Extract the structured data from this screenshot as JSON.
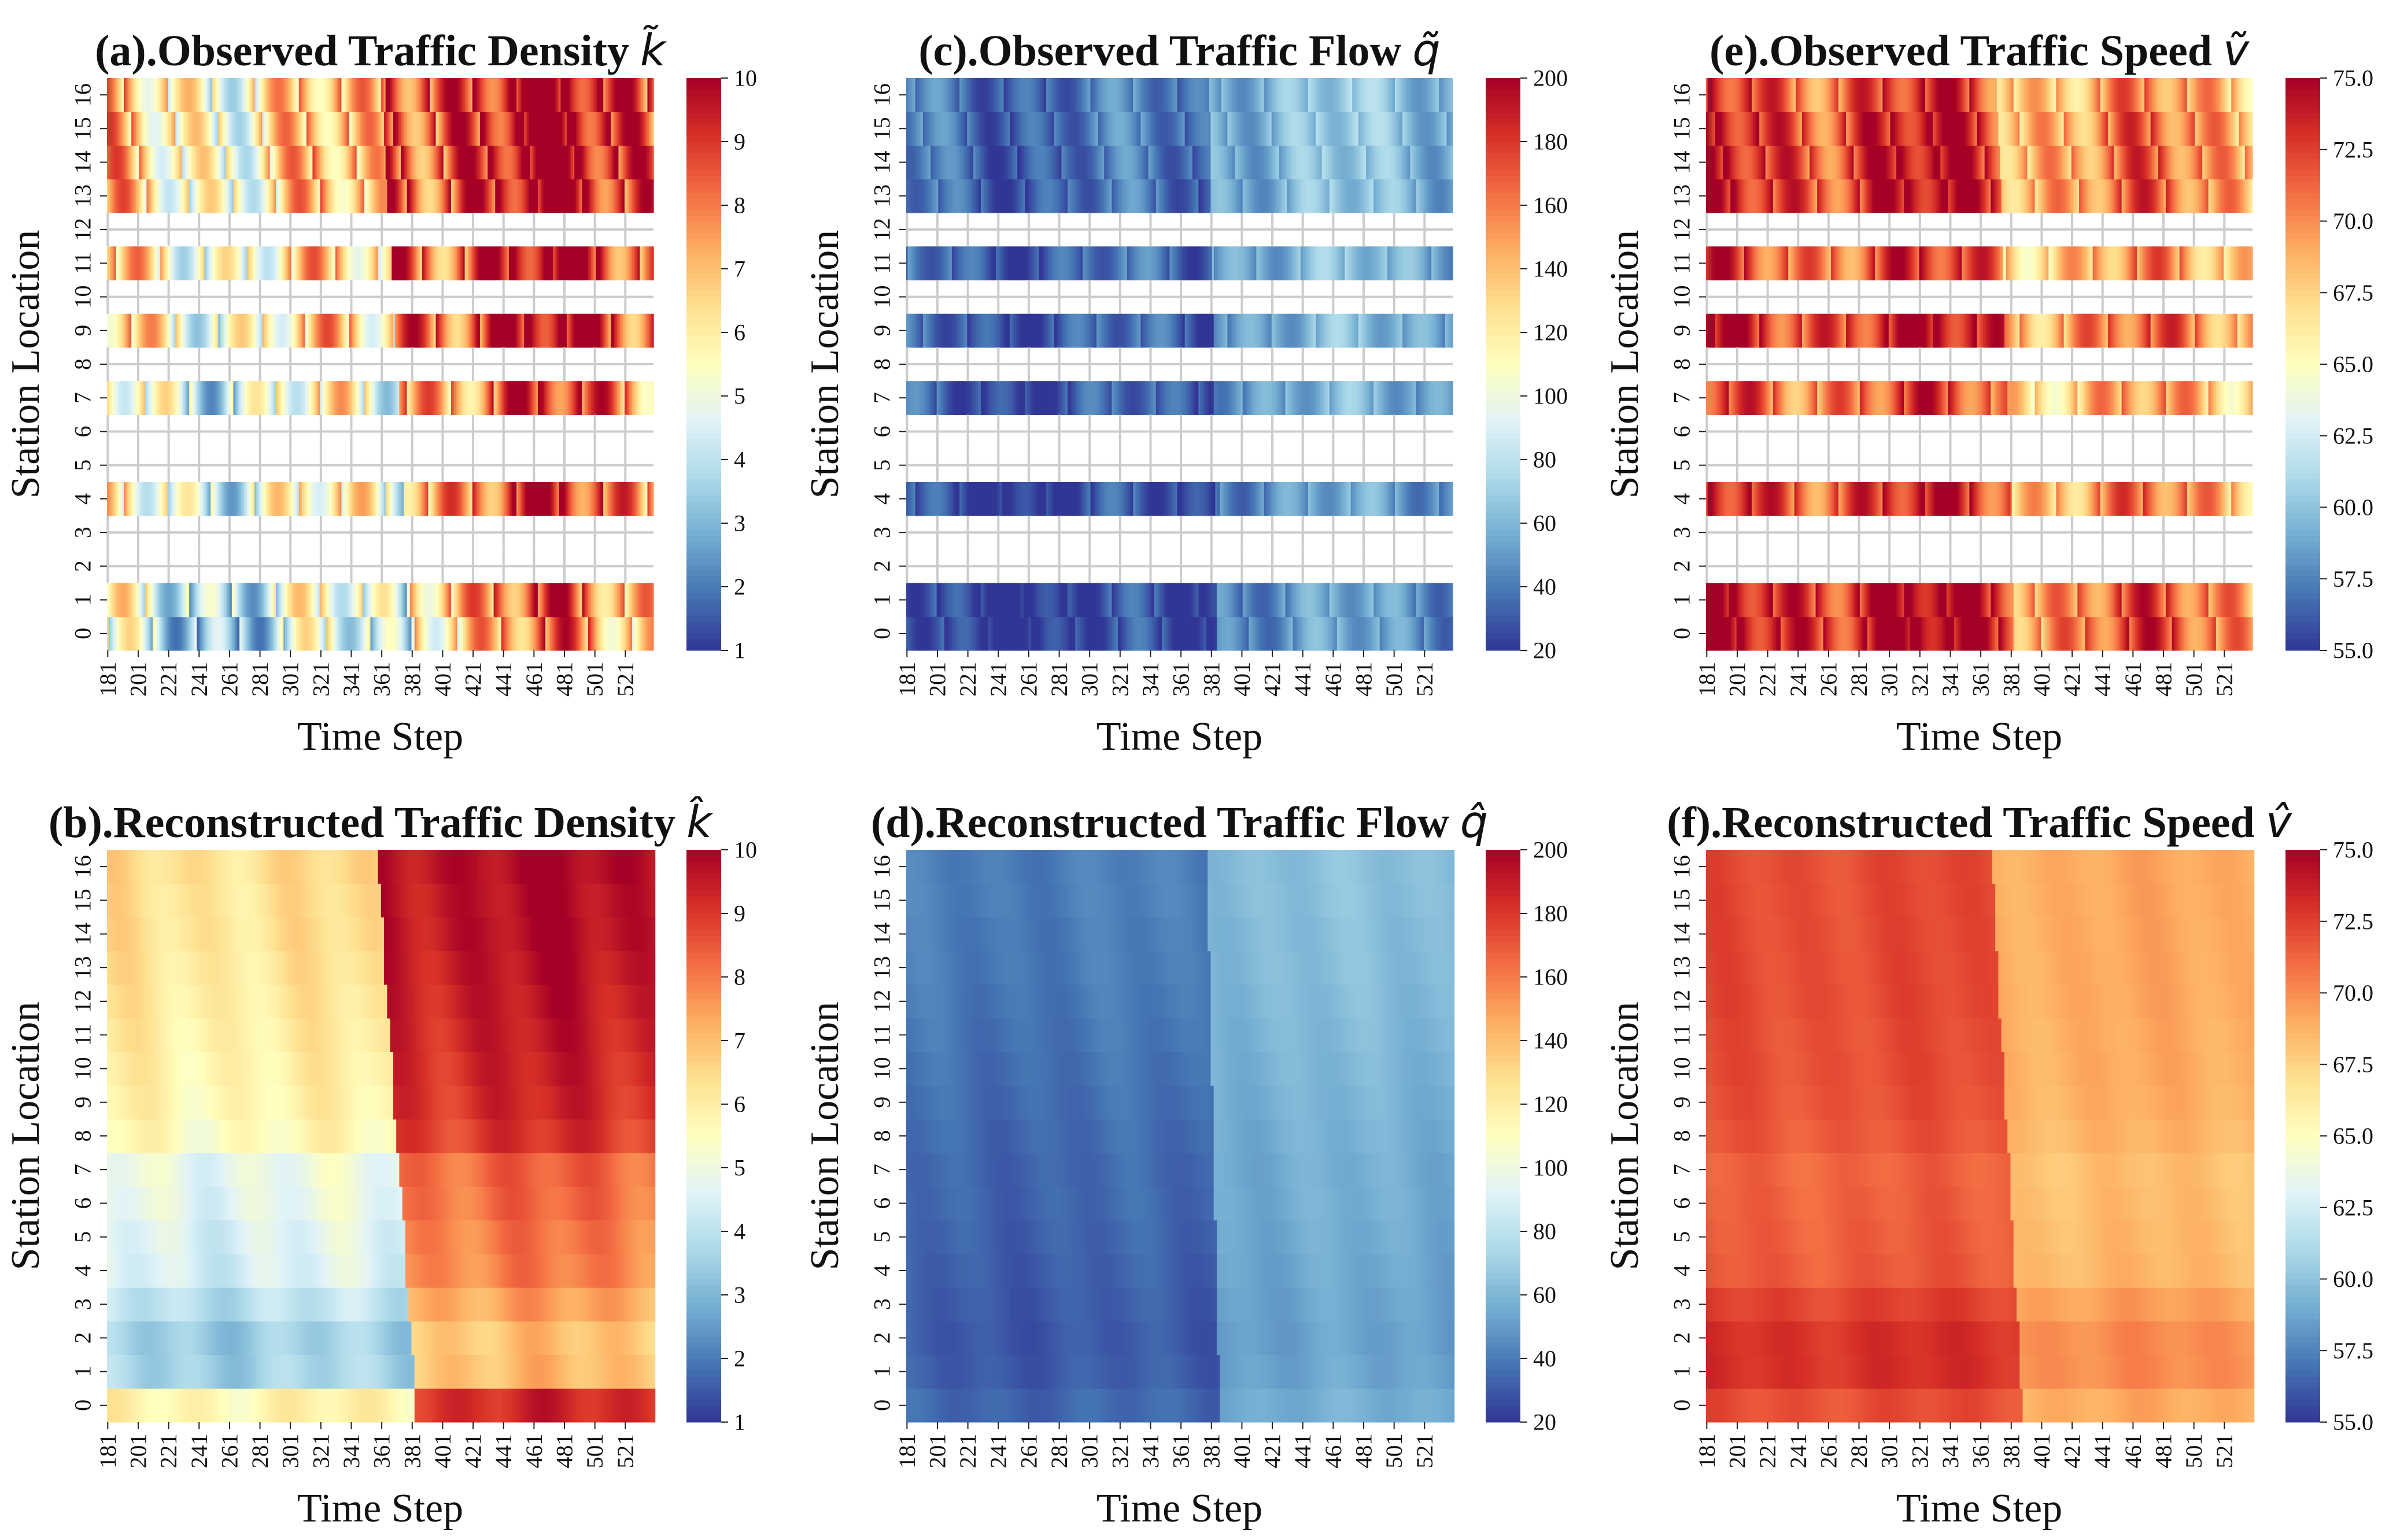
{
  "figure": {
    "background": "#ffffff",
    "grid_color": "#cccccc",
    "colorscale": "RdYlBu_r"
  },
  "chart_data": [
    {
      "type": "heatmap",
      "panel": "a",
      "title": "(a).Observed Traffic Density",
      "title_symbol": "k̃",
      "xlabel": "Time Step",
      "ylabel": "Station Location",
      "x_ticks": [
        "181",
        "201",
        "221",
        "241",
        "261",
        "281",
        "301",
        "321",
        "341",
        "361",
        "381",
        "401",
        "421",
        "441",
        "461",
        "481",
        "501",
        "521"
      ],
      "y_ticks": [
        "0",
        "1",
        "2",
        "3",
        "4",
        "5",
        "6",
        "7",
        "8",
        "9",
        "10",
        "11",
        "12",
        "13",
        "14",
        "15",
        "16"
      ],
      "x_range": [
        181,
        540
      ],
      "observed_stations": [
        0,
        1,
        4,
        7,
        9,
        11,
        13,
        14,
        15,
        16
      ],
      "missing_stations": [
        2,
        3,
        5,
        6,
        8,
        10,
        12
      ],
      "colorbar": {
        "min": 1,
        "max": 10,
        "ticks": [
          "1",
          "2",
          "3",
          "4",
          "5",
          "6",
          "7",
          "8",
          "9",
          "10"
        ]
      },
      "pattern": {
        "level_before": 5.6,
        "level_after": 8.8,
        "transition_start": 381,
        "transition_end": 361,
        "station_offsets": [
          -1.6,
          -1.0,
          0,
          0,
          -0.4,
          0,
          0,
          -0.6,
          0,
          0.3,
          0,
          0.3,
          0,
          0.5,
          0.6,
          0.6,
          0.6
        ]
      },
      "noise": 1.8,
      "observed": true
    },
    {
      "type": "heatmap",
      "panel": "b",
      "title": "(b).Reconstructed Traffic Density",
      "title_symbol": "k̂",
      "xlabel": "Time Step",
      "ylabel": "Station Location",
      "x_ticks": [
        "181",
        "201",
        "221",
        "241",
        "261",
        "281",
        "301",
        "321",
        "341",
        "361",
        "381",
        "401",
        "421",
        "441",
        "461",
        "481",
        "501",
        "521"
      ],
      "y_ticks": [
        "0",
        "1",
        "2",
        "3",
        "4",
        "5",
        "6",
        "7",
        "8",
        "9",
        "10",
        "11",
        "12",
        "13",
        "14",
        "15",
        "16"
      ],
      "x_range": [
        181,
        540
      ],
      "colorbar": {
        "min": 1,
        "max": 10,
        "ticks": [
          "1",
          "2",
          "3",
          "4",
          "5",
          "6",
          "7",
          "8",
          "9",
          "10"
        ]
      },
      "pattern": {
        "level_before": 5.4,
        "level_after": 8.8,
        "transition_start": 383,
        "transition_end": 358,
        "station_offsets": [
          0.4,
          -1.8,
          -1.9,
          -1.4,
          -0.9,
          -0.8,
          -0.6,
          -0.5,
          0.2,
          0.4,
          0.5,
          0.6,
          0.7,
          0.8,
          0.9,
          0.9,
          1.0
        ]
      },
      "noise": 0.35,
      "observed": false
    },
    {
      "type": "heatmap",
      "panel": "c",
      "title": "(c).Observed Traffic Flow",
      "title_symbol": "q̃",
      "xlabel": "Time Step",
      "ylabel": "Station Location",
      "x_ticks": [
        "181",
        "201",
        "221",
        "241",
        "261",
        "281",
        "301",
        "321",
        "341",
        "361",
        "381",
        "401",
        "421",
        "441",
        "461",
        "481",
        "501",
        "521"
      ],
      "y_ticks": [
        "0",
        "1",
        "2",
        "3",
        "4",
        "5",
        "6",
        "7",
        "8",
        "9",
        "10",
        "11",
        "12",
        "13",
        "14",
        "15",
        "16"
      ],
      "x_range": [
        181,
        540
      ],
      "observed_stations": [
        0,
        1,
        4,
        7,
        9,
        11,
        13,
        14,
        15,
        16
      ],
      "missing_stations": [
        2,
        3,
        5,
        6,
        8,
        10,
        12
      ],
      "colorbar": {
        "min": 20,
        "max": 200,
        "ticks": [
          "20",
          "40",
          "60",
          "80",
          "100",
          "120",
          "140",
          "160",
          "180",
          "200"
        ]
      },
      "pattern": {
        "level_before": 30,
        "level_after": 55,
        "transition_start": 385,
        "transition_end": 380,
        "station_offsets": [
          -6,
          -6,
          0,
          0,
          -5,
          0,
          0,
          0,
          0,
          2,
          0,
          4,
          0,
          5,
          6,
          8,
          8
        ]
      },
      "noise": 12,
      "observed": true
    },
    {
      "type": "heatmap",
      "panel": "d",
      "title": "(d).Reconstructed Traffic Flow",
      "title_symbol": "q̂",
      "xlabel": "Time Step",
      "ylabel": "Station Location",
      "x_ticks": [
        "181",
        "201",
        "221",
        "241",
        "261",
        "281",
        "301",
        "321",
        "341",
        "361",
        "381",
        "401",
        "421",
        "441",
        "461",
        "481",
        "501",
        "521"
      ],
      "y_ticks": [
        "0",
        "1",
        "2",
        "3",
        "4",
        "5",
        "6",
        "7",
        "8",
        "9",
        "10",
        "11",
        "12",
        "13",
        "14",
        "15",
        "16"
      ],
      "x_range": [
        181,
        540
      ],
      "colorbar": {
        "min": 20,
        "max": 200,
        "ticks": [
          "20",
          "40",
          "60",
          "80",
          "100",
          "120",
          "140",
          "160",
          "180",
          "200"
        ]
      },
      "pattern": {
        "level_before": 34,
        "level_after": 56,
        "transition_start": 386,
        "transition_end": 378,
        "station_offsets": [
          0,
          -3,
          -4,
          -3,
          -2,
          -1,
          0,
          0,
          1,
          2,
          3,
          4,
          5,
          6,
          6,
          7,
          7
        ]
      },
      "noise": 3,
      "observed": false
    },
    {
      "type": "heatmap",
      "panel": "e",
      "title": "(e).Observed Traffic Speed",
      "title_symbol": "ṽ",
      "xlabel": "Time Step",
      "ylabel": "Station Location",
      "x_ticks": [
        "181",
        "201",
        "221",
        "241",
        "261",
        "281",
        "301",
        "321",
        "341",
        "361",
        "381",
        "401",
        "421",
        "441",
        "461",
        "481",
        "501",
        "521"
      ],
      "y_ticks": [
        "0",
        "1",
        "2",
        "3",
        "4",
        "5",
        "6",
        "7",
        "8",
        "9",
        "10",
        "11",
        "12",
        "13",
        "14",
        "15",
        "16"
      ],
      "x_range": [
        181,
        540
      ],
      "observed_stations": [
        0,
        1,
        4,
        7,
        9,
        11,
        13,
        14,
        15,
        16
      ],
      "missing_stations": [
        2,
        3,
        5,
        6,
        8,
        10,
        12
      ],
      "colorbar": {
        "min": 55.0,
        "max": 75.0,
        "ticks": [
          "55.0",
          "57.5",
          "60.0",
          "62.5",
          "65.0",
          "67.5",
          "70.0",
          "72.5",
          "75.0"
        ]
      },
      "pattern": {
        "level_before": 72.5,
        "level_after": 69.5,
        "transition_start": 383,
        "transition_end": 372,
        "station_offsets": [
          1.5,
          1.2,
          0,
          0,
          0,
          0,
          0,
          -1.2,
          0,
          0.6,
          0,
          -0.8,
          0,
          0.6,
          0.5,
          0.3,
          -0.5
        ]
      },
      "noise": 2.6,
      "observed": true
    },
    {
      "type": "heatmap",
      "panel": "f",
      "title": "(f).Reconstructed Traffic Speed",
      "title_symbol": "v̂",
      "xlabel": "Time Step",
      "ylabel": "Station Location",
      "x_ticks": [
        "181",
        "201",
        "221",
        "241",
        "261",
        "281",
        "301",
        "321",
        "341",
        "361",
        "381",
        "401",
        "421",
        "441",
        "461",
        "481",
        "501",
        "521"
      ],
      "y_ticks": [
        "0",
        "1",
        "2",
        "3",
        "4",
        "5",
        "6",
        "7",
        "8",
        "9",
        "10",
        "11",
        "12",
        "13",
        "14",
        "15",
        "16"
      ],
      "x_range": [
        181,
        540
      ],
      "colorbar": {
        "min": 55.0,
        "max": 75.0,
        "ticks": [
          "55.0",
          "57.5",
          "60.0",
          "62.5",
          "65.0",
          "67.5",
          "70.0",
          "72.5",
          "75.0"
        ]
      },
      "pattern": {
        "level_before": 71.8,
        "level_after": 68.8,
        "transition_start": 388,
        "transition_end": 368,
        "station_offsets": [
          0.2,
          1.2,
          1.2,
          0.6,
          -0.2,
          -0.3,
          -0.4,
          -0.5,
          -0.1,
          0.1,
          0.2,
          0.2,
          0.3,
          0.3,
          0.3,
          0.3,
          0.3
        ]
      },
      "noise": 0.35,
      "observed": false
    }
  ]
}
